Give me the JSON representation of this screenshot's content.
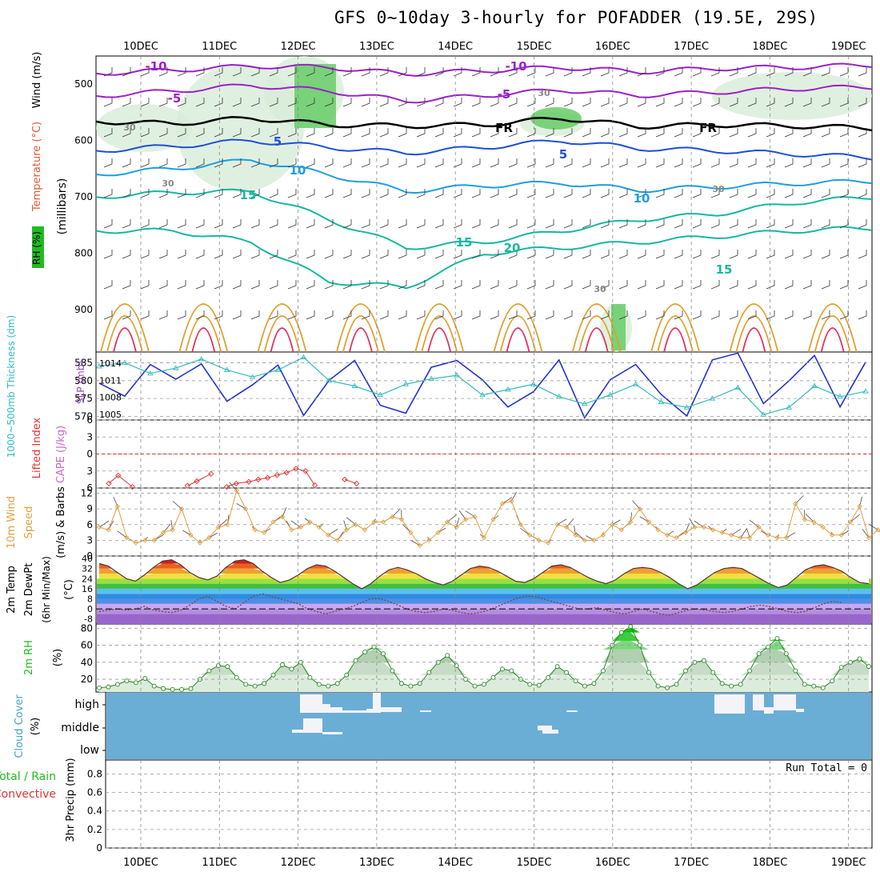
{
  "title": "GFS 0~10day 3-hourly for POFADDER (19.5E, 29S)",
  "days": [
    "10DEC",
    "11DEC",
    "12DEC",
    "13DEC",
    "14DEC",
    "15DEC",
    "16DEC",
    "17DEC",
    "18DEC",
    "19DEC"
  ],
  "colors": {
    "temp_purple": "#9a21c8",
    "temp_blue": "#1e4fd6",
    "temp_lightblue": "#1e9ee0",
    "temp_teal": "#16b8a0",
    "temp_orange": "#e0a030",
    "temp_red": "#e03060",
    "slp": "#2233cc",
    "thickness": "#33bbbb",
    "li": "#dd3333",
    "wind10m": "#e0a040",
    "rh_green": "#22bb22",
    "cloud_blue": "#6aaed6"
  },
  "chart_data": [
    {
      "id": "upper_air",
      "type": "heatmap",
      "ylabel_parts": [
        "RH (%)",
        "Temperature (°C)",
        "Wind (m/s)",
        "(millibars)"
      ],
      "yticks": [
        500,
        600,
        700,
        800,
        900
      ],
      "ylim": [
        450,
        975
      ],
      "isotherms": [
        {
          "label": "-10",
          "values": [
            -10,
            -10,
            -10,
            -10,
            -10,
            -10,
            -10,
            -10,
            -10,
            -10,
            -10
          ]
        },
        {
          "label": "-5",
          "values": [
            -5,
            -5,
            -5,
            -5,
            -5,
            -5,
            -5,
            -5,
            -5,
            -5,
            -5
          ]
        },
        {
          "label": "FR",
          "values": [
            0,
            0,
            0,
            0,
            0,
            0,
            0,
            0,
            0,
            0,
            0
          ]
        },
        {
          "label": "5",
          "values": [
            5,
            5,
            5,
            5,
            5,
            5,
            5,
            5,
            5,
            5,
            5
          ]
        },
        {
          "label": "10",
          "values": [
            10,
            10,
            10,
            10,
            10,
            10,
            10,
            10,
            10,
            10,
            10
          ]
        },
        {
          "label": "15",
          "values": [
            15,
            15,
            15,
            15,
            15,
            15,
            15,
            15,
            15,
            15,
            15
          ]
        },
        {
          "label": "20",
          "values": [
            20,
            20,
            20,
            20,
            20,
            20,
            20,
            20,
            20,
            20,
            20
          ]
        }
      ],
      "isotherm_levels_mb": {
        "-10": [
          481,
          475,
          468,
          470,
          482,
          476,
          470,
          478,
          472,
          470,
          466
        ],
        "-5": [
          521,
          512,
          502,
          512,
          530,
          520,
          510,
          520,
          514,
          508,
          505
        ],
        "FR": [
          566,
          570,
          560,
          572,
          574,
          572,
          560,
          575,
          572,
          574,
          578
        ],
        "5": [
          618,
          610,
          600,
          612,
          622,
          612,
          600,
          614,
          618,
          624,
          630
        ],
        "10": [
          660,
          650,
          634,
          660,
          690,
          680,
          675,
          688,
          682,
          676,
          672
        ],
        "15": [
          700,
          692,
          690,
          740,
          790,
          780,
          760,
          740,
          730,
          710,
          700
        ],
        "20": [
          760,
          760,
          780,
          850,
          860,
          800,
          790,
          780,
          770,
          760,
          755
        ]
      },
      "contour_labels": [
        "-10",
        "-5",
        "FR",
        "5",
        "10",
        "15",
        "20",
        "30"
      ]
    },
    {
      "id": "slp_thickness",
      "type": "line",
      "ylabel_left": "1000~500mb Thickness (dm)",
      "ylabel_right": "SLP (mb)",
      "yticks_left": [
        570,
        575,
        580,
        585
      ],
      "yticks_right": [
        1005,
        1008,
        1011,
        1014
      ],
      "ylim_left": [
        569,
        588
      ],
      "ylim_right": [
        1004,
        1016
      ],
      "series": [
        {
          "name": "SLP",
          "values": [
            1010.5,
            1008.2,
            1013.8,
            1011.2,
            1013.9,
            1007.3,
            1010.2,
            1013.7,
            1004.8,
            1011.0,
            1014.5,
            1006.6,
            1005.2,
            1013.3,
            1014.5,
            1011.1,
            1006.3,
            1009.0,
            1014.6,
            1004.4,
            1011.1,
            1013.8,
            1008.5,
            1004.7,
            1014.6,
            1015.8,
            1006.9,
            1010.9,
            1015.4,
            1006.3,
            1014.2
          ]
        },
        {
          "name": "Thickness",
          "values": [
            584.0,
            585.0,
            582.0,
            583.5,
            586.0,
            583.0,
            581.0,
            583.0,
            586.5,
            580.0,
            578.5,
            576.0,
            579.0,
            580.5,
            581.5,
            576.0,
            577.5,
            579.0,
            575.5,
            573.5,
            576.0,
            579.0,
            574.0,
            572.5,
            575.0,
            578.0,
            570.5,
            572.5,
            578.5,
            575.5,
            577.0
          ]
        }
      ]
    },
    {
      "id": "lifted_index",
      "type": "line",
      "ylabel": "Lifted Index",
      "ylabel2": "CAPE (J/kg)",
      "yticks": [
        -6,
        -3,
        0,
        3,
        6
      ],
      "ytick_labels": [
        "6",
        "3",
        "0",
        "3",
        "6"
      ],
      "ylim": [
        -6,
        6
      ],
      "series": [
        {
          "name": "LI",
          "x": [
            0,
            0.12,
            0.3,
            1.0,
            1.12,
            1.3,
            1.5,
            1.62,
            1.78,
            1.9,
            2.02,
            2.14,
            2.26,
            2.38,
            2.5,
            2.62,
            3.0,
            3.15
          ],
          "values": [
            5.2,
            3.8,
            5.8,
            5.6,
            4.8,
            3.5,
            5.8,
            5.2,
            4.9,
            4.5,
            4.2,
            3.7,
            3.3,
            2.6,
            3.0,
            5.5,
            4.5,
            5.2
          ]
        }
      ]
    },
    {
      "id": "wind10m",
      "type": "line",
      "ylabel": "10m Wind Speed (m/s) & Barbs",
      "yticks": [
        0,
        3,
        6,
        9,
        12
      ],
      "ylim": [
        0,
        13
      ],
      "series": [
        {
          "name": "10m Wind",
          "values": [
            5.5,
            5,
            9.5,
            3.5,
            2.5,
            3,
            3,
            4.5,
            5,
            9,
            4,
            2.5,
            3.5,
            5.5,
            6,
            12.5,
            9,
            5,
            4.5,
            6.5,
            7.5,
            5,
            5.5,
            6.5,
            5.5,
            4,
            3,
            5,
            6,
            5,
            6.5,
            6.5,
            7.5,
            7,
            4.5,
            2,
            3,
            4.5,
            6.5,
            5.5,
            7,
            7.5,
            3.5,
            7,
            10,
            10.5,
            6,
            4,
            3,
            2.5,
            6,
            5.5,
            4,
            3,
            3,
            4,
            6,
            5,
            6.5,
            9,
            6.5,
            5,
            4,
            3.5,
            4.5,
            5.5,
            5.5,
            5,
            4.5,
            4,
            3.5,
            3.5,
            5.5,
            4,
            3.5,
            3.5,
            10,
            7,
            6.5,
            5.5,
            4,
            4,
            6.5,
            9.5,
            3.5,
            5,
            3
          ]
        }
      ]
    },
    {
      "id": "temp2m",
      "type": "area",
      "ylabel": "2m Temp 2m DewPt (6hr Min/Max) (°C)",
      "yticks": [
        -8,
        0,
        8,
        16,
        24,
        32,
        40
      ],
      "ylim": [
        -12,
        42
      ],
      "series": [
        {
          "name": "2m Temp",
          "values": [
            36,
            34,
            29,
            24,
            22,
            27,
            33,
            38,
            39,
            35,
            29,
            25,
            23,
            26,
            33,
            38,
            39,
            36,
            30,
            25,
            21,
            23,
            27,
            32,
            35,
            34,
            30,
            25,
            20,
            16,
            20,
            26,
            31,
            33,
            31,
            28,
            24,
            21,
            19,
            22,
            27,
            32,
            34,
            33,
            30,
            26,
            22,
            21,
            24,
            29,
            34,
            35,
            33,
            29,
            25,
            22,
            20,
            23,
            28,
            32,
            33,
            32,
            29,
            25,
            20,
            16,
            19,
            24,
            29,
            32,
            33,
            32,
            28,
            24,
            20,
            17,
            19,
            25,
            31,
            34,
            35,
            33,
            30,
            25,
            21,
            20
          ]
        },
        {
          "name": "2m DewPt",
          "values": [
            -2,
            -1,
            0,
            -1,
            0,
            2,
            -1,
            -2,
            -3,
            -1,
            3,
            8,
            10,
            6,
            2,
            0,
            5,
            10,
            12,
            10,
            8,
            6,
            4,
            0,
            -2,
            -4,
            -2,
            0,
            2,
            5,
            8,
            8,
            6,
            3,
            0,
            -2,
            -3,
            -2,
            0,
            -1,
            -3,
            -4,
            -3,
            -1,
            2,
            5,
            8,
            10,
            10,
            8,
            6,
            4,
            2,
            0,
            0,
            1,
            -1,
            -3,
            -4,
            -2,
            0,
            -2,
            -4,
            -5,
            -3,
            -1,
            0,
            -1,
            -2,
            -3,
            -2,
            0,
            2,
            3,
            2,
            0,
            -2,
            -3,
            -2,
            1,
            4,
            6,
            5
          ]
        }
      ]
    },
    {
      "id": "rh2m",
      "type": "area",
      "ylabel": "2m RH (%)",
      "yticks": [
        20,
        40,
        60,
        80
      ],
      "ylim": [
        5,
        85
      ],
      "series": [
        {
          "name": "2m RH",
          "values": [
            10,
            11,
            14,
            18,
            16,
            21,
            12,
            9,
            8,
            8,
            9,
            20,
            30,
            36,
            35,
            22,
            14,
            12,
            15,
            25,
            37,
            32,
            40,
            22,
            14,
            12,
            15,
            25,
            42,
            52,
            58,
            50,
            30,
            15,
            12,
            15,
            28,
            40,
            48,
            36,
            20,
            12,
            14,
            22,
            32,
            30,
            20,
            14,
            13,
            22,
            35,
            28,
            18,
            12,
            15,
            30,
            60,
            75,
            82,
            60,
            28,
            12,
            10,
            14,
            30,
            40,
            42,
            28,
            15,
            12,
            14,
            30,
            50,
            58,
            68,
            50,
            30,
            14,
            12,
            10,
            18,
            34,
            40,
            44,
            35
          ]
        }
      ]
    },
    {
      "id": "cloud",
      "type": "bar",
      "ylabel": "Cloud Cover (%)",
      "categories": [
        "high",
        "middle",
        "low"
      ]
    },
    {
      "id": "precip",
      "type": "bar",
      "ylabel": "3hr Precip (mm)",
      "ylabel2": "Total / Rain",
      "ylabel3": "Convective",
      "yticks": [
        0,
        0.2,
        0.4,
        0.6,
        0.8
      ],
      "ytick_labels": [
        "0",
        "0.2",
        "0.4",
        "0.6",
        "0.8"
      ],
      "ylim": [
        0,
        0.95
      ],
      "run_total_label": "Run Total = 0",
      "values": []
    }
  ]
}
